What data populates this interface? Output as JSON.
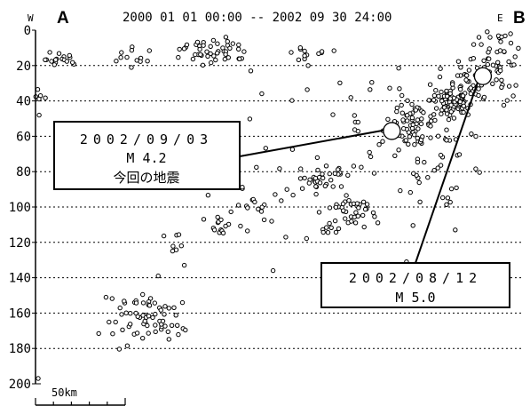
{
  "header": {
    "west_label": "W",
    "east_label": "E",
    "section_start": "A",
    "section_end": "B",
    "period": "2000 01 01 00:00 -- 2002 09 30 24:00"
  },
  "chart_data": {
    "type": "scatter",
    "title": "2000 01 01 00:00 -- 2002 09 30 24:00",
    "xlabel": "",
    "ylabel": "",
    "xlim": [
      0,
      370
    ],
    "ylim": [
      0,
      200
    ],
    "y_inverted": true,
    "y_ticks": [
      0,
      20,
      40,
      60,
      80,
      100,
      120,
      140,
      160,
      180,
      200
    ],
    "x_unit": "km",
    "grid": "horizontal dotted",
    "marker": "open circle",
    "clusters": [
      {
        "cx": 18,
        "cy": 16,
        "sx": 9,
        "sy": 2.5,
        "n": 18
      },
      {
        "cx": 76,
        "cy": 16,
        "sx": 9,
        "sy": 2.5,
        "n": 12
      },
      {
        "cx": 135,
        "cy": 11,
        "sx": 13,
        "sy": 3.5,
        "n": 45
      },
      {
        "cx": 205,
        "cy": 13,
        "sx": 10,
        "sy": 2.5,
        "n": 12
      },
      {
        "cx": 3,
        "cy": 28,
        "sx": 3,
        "sy": 12,
        "n": 6
      },
      {
        "cx": 80,
        "cy": 163,
        "sx": 14,
        "sy": 8,
        "n": 60
      },
      {
        "cx": 112,
        "cy": 164,
        "sx": 5,
        "sy": 8,
        "n": 8
      },
      {
        "cx": 104,
        "cy": 124,
        "sx": 6,
        "sy": 6,
        "n": 7
      },
      {
        "cx": 140,
        "cy": 111,
        "sx": 9,
        "sy": 4,
        "n": 16
      },
      {
        "cx": 166,
        "cy": 98,
        "sx": 9,
        "sy": 4,
        "n": 16
      },
      {
        "cx": 213,
        "cy": 86,
        "sx": 6,
        "sy": 3,
        "n": 22
      },
      {
        "cx": 230,
        "cy": 78,
        "sx": 4,
        "sy": 4,
        "n": 8
      },
      {
        "cx": 241,
        "cy": 102,
        "sx": 9,
        "sy": 4,
        "n": 38
      },
      {
        "cx": 223,
        "cy": 113,
        "sx": 5,
        "sy": 3,
        "n": 8
      },
      {
        "cx": 285,
        "cy": 53,
        "sx": 8,
        "sy": 5,
        "n": 45
      },
      {
        "cx": 315,
        "cy": 40,
        "sx": 8,
        "sy": 5,
        "n": 75
      },
      {
        "cx": 328,
        "cy": 28,
        "sx": 8,
        "sy": 7,
        "n": 40
      },
      {
        "cx": 352,
        "cy": 18,
        "sx": 9,
        "sy": 10,
        "n": 50
      },
      {
        "cx": 305,
        "cy": 70,
        "sx": 22,
        "sy": 18,
        "n": 55
      },
      {
        "cx": 260,
        "cy": 55,
        "sx": 25,
        "sy": 15,
        "n": 25
      },
      {
        "cx": 180,
        "cy": 60,
        "sx": 50,
        "sy": 35,
        "n": 25
      }
    ],
    "isolated_points": [
      {
        "x": 2,
        "y": 197
      },
      {
        "x": 93,
        "y": 139
      },
      {
        "x": 180,
        "y": 136
      },
      {
        "x": 360,
        "y": 2
      },
      {
        "x": 336,
        "y": 4
      }
    ],
    "featured_events": [
      {
        "date": "2002/09/03",
        "magnitude": "M 4.2",
        "note": "今回の地震",
        "x": 270,
        "y": 57
      },
      {
        "date": "2002/08/12",
        "magnitude": "M 5.0",
        "x": 339,
        "y": 26
      }
    ]
  },
  "axis": {
    "y_tick_labels": [
      "0",
      "20",
      "40",
      "60",
      "80",
      "100",
      "120",
      "140",
      "160",
      "180",
      "200"
    ]
  },
  "scale_bar": {
    "label": "50km",
    "length_km": 50
  },
  "annotations": {
    "event1": {
      "date": "2002/09/03",
      "magnitude": "M 4.2",
      "note": "今回の地震"
    },
    "event2": {
      "date": "2002/08/12",
      "magnitude": "M 5.0"
    }
  }
}
